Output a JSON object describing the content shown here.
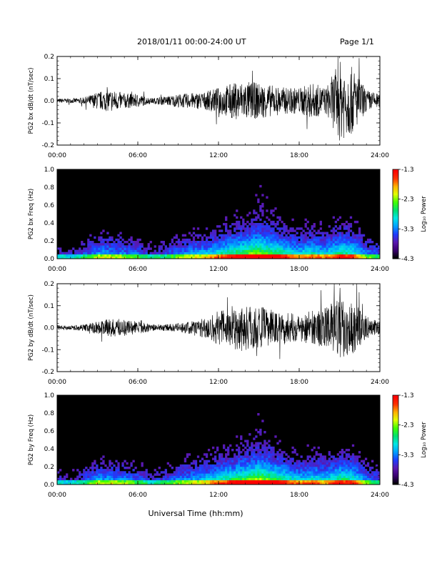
{
  "header": {
    "title": "2018/01/11  00:00-24:00 UT",
    "page": "Page 1/1"
  },
  "colors": {
    "line": "#000000",
    "background": "#ffffff",
    "spectrogram_bg": "#000000"
  },
  "colorbar": {
    "label": "Log₁₀ Power",
    "ticks": [
      "-1.3",
      "-2.3",
      "-3.3",
      "-4.3"
    ],
    "range": [
      -4.3,
      -1.3
    ],
    "colormap": [
      "#000000",
      "#3a006e",
      "#5a18b0",
      "#1e3cff",
      "#00a0ff",
      "#00e6e6",
      "#00e070",
      "#40ff00",
      "#e0ff00",
      "#ffb000",
      "#ff3000",
      "#ff0000"
    ]
  },
  "chart_data": [
    {
      "type": "line",
      "ylabel": "PG2 bx dB/dt (nT/sec)",
      "x_ticks": [
        "00:00",
        "06:00",
        "12:00",
        "18:00",
        "24:00"
      ],
      "xlim": [
        0,
        24
      ],
      "ylim": [
        -0.2,
        0.2
      ],
      "y_ticks": [
        "0.2",
        "0.1",
        "0.0",
        "-0.1",
        "-0.2"
      ],
      "envelope": {
        "hour": [
          0,
          1,
          2,
          3,
          4,
          5,
          6,
          7,
          8,
          9,
          10,
          11,
          12,
          13,
          14,
          15,
          16,
          17,
          18,
          19,
          20,
          21,
          22,
          23,
          24
        ],
        "amplitude": [
          0.01,
          0.01,
          0.015,
          0.04,
          0.05,
          0.035,
          0.03,
          0.012,
          0.02,
          0.03,
          0.035,
          0.04,
          0.06,
          0.08,
          0.09,
          0.08,
          0.07,
          0.06,
          0.06,
          0.08,
          0.06,
          0.18,
          0.15,
          0.05,
          0.03
        ]
      }
    },
    {
      "type": "heatmap",
      "ylabel": "PG2 bx Freq (Hz)",
      "x_ticks": [
        "00:00",
        "06:00",
        "12:00",
        "18:00",
        "24:00"
      ],
      "xlim": [
        0,
        24
      ],
      "ylim": [
        0.0,
        1.0
      ],
      "y_ticks": [
        "1.0",
        "0.8",
        "0.6",
        "0.4",
        "0.2",
        "0.0"
      ],
      "activity": {
        "hour": [
          0,
          1,
          2,
          3,
          4,
          5,
          6,
          7,
          8,
          9,
          10,
          11,
          12,
          13,
          14,
          15,
          16,
          17,
          18,
          19,
          20,
          21,
          22,
          23,
          24
        ],
        "level": [
          0.3,
          0.25,
          0.35,
          0.5,
          0.5,
          0.45,
          0.4,
          0.3,
          0.35,
          0.45,
          0.5,
          0.55,
          0.65,
          0.75,
          0.85,
          0.95,
          0.85,
          0.7,
          0.6,
          0.65,
          0.6,
          0.75,
          0.7,
          0.45,
          0.35
        ]
      }
    },
    {
      "type": "line",
      "ylabel": "PG2 by dB/dt (nT/sec)",
      "x_ticks": [
        "00:00",
        "06:00",
        "12:00",
        "18:00",
        "24:00"
      ],
      "xlim": [
        0,
        24
      ],
      "ylim": [
        -0.2,
        0.2
      ],
      "y_ticks": [
        "0.2",
        "0.1",
        "0.0",
        "-0.1",
        "-0.2"
      ],
      "envelope": {
        "hour": [
          0,
          1,
          2,
          3,
          4,
          5,
          6,
          7,
          8,
          9,
          10,
          11,
          12,
          13,
          14,
          15,
          16,
          17,
          18,
          19,
          20,
          21,
          22,
          23,
          24
        ],
        "amplitude": [
          0.01,
          0.01,
          0.015,
          0.03,
          0.04,
          0.04,
          0.03,
          0.015,
          0.015,
          0.02,
          0.03,
          0.05,
          0.08,
          0.1,
          0.11,
          0.1,
          0.08,
          0.07,
          0.06,
          0.08,
          0.09,
          0.14,
          0.12,
          0.05,
          0.03
        ]
      }
    },
    {
      "type": "heatmap",
      "ylabel": "PG2 by Freq (Hz)",
      "x_ticks": [
        "00:00",
        "06:00",
        "12:00",
        "18:00",
        "24:00"
      ],
      "xlim": [
        0,
        24
      ],
      "ylim": [
        0.0,
        1.0
      ],
      "y_ticks": [
        "1.0",
        "0.8",
        "0.6",
        "0.4",
        "0.2",
        "0.0"
      ],
      "activity": {
        "hour": [
          0,
          1,
          2,
          3,
          4,
          5,
          6,
          7,
          8,
          9,
          10,
          11,
          12,
          13,
          14,
          15,
          16,
          17,
          18,
          19,
          20,
          21,
          22,
          23,
          24
        ],
        "level": [
          0.3,
          0.25,
          0.35,
          0.5,
          0.5,
          0.45,
          0.4,
          0.3,
          0.35,
          0.45,
          0.5,
          0.55,
          0.65,
          0.75,
          0.85,
          0.95,
          0.85,
          0.7,
          0.6,
          0.65,
          0.6,
          0.75,
          0.7,
          0.45,
          0.35
        ]
      }
    }
  ],
  "xlabel": "Universal Time (hh:mm)"
}
